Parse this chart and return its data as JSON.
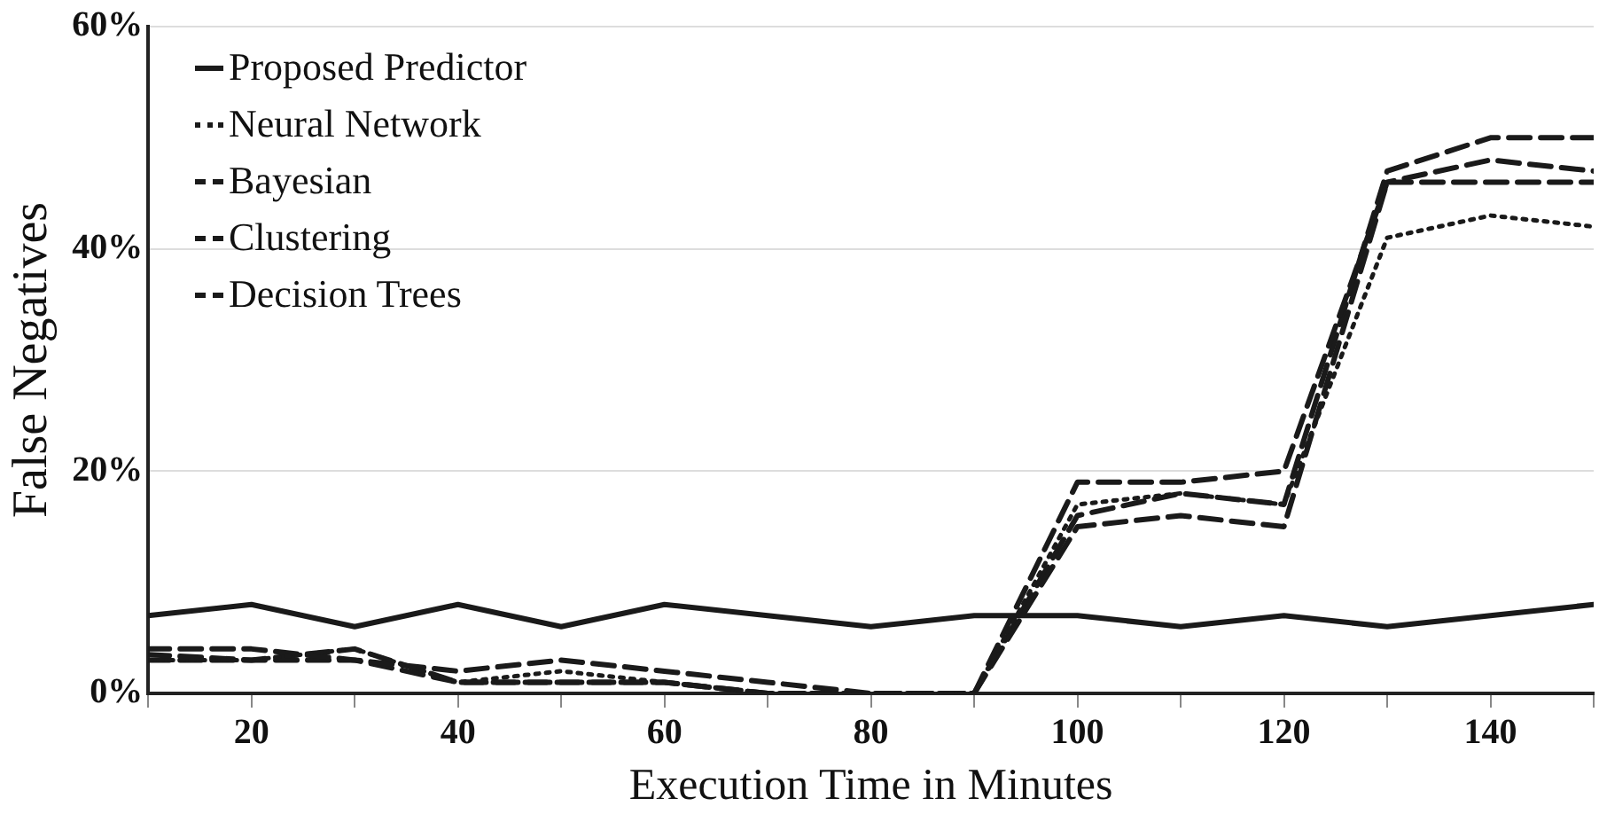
{
  "chart_data": {
    "type": "line",
    "xlabel": "Execution Time in Minutes",
    "ylabel": "False Negatives",
    "x": [
      10,
      20,
      30,
      40,
      50,
      60,
      70,
      80,
      90,
      100,
      110,
      120,
      130,
      140,
      150
    ],
    "series": [
      {
        "name": "Proposed Predictor",
        "color": "#1a1a1a",
        "line_style": "solid",
        "values": [
          7,
          8,
          6,
          8,
          6,
          8,
          7,
          6,
          7,
          7,
          6,
          7,
          6,
          7,
          8
        ]
      },
      {
        "name": "Neural Network",
        "color": "#1a1a1a",
        "line_style": "dotted",
        "values": [
          3,
          3,
          4,
          1,
          2,
          1,
          0,
          0,
          0,
          17,
          18,
          17,
          41,
          43,
          42
        ]
      },
      {
        "name": "Bayesian",
        "color": "#1a1a1a",
        "line_style": "dashed",
        "values": [
          4,
          4,
          3,
          2,
          3,
          2,
          1,
          0,
          0,
          15,
          16,
          15,
          46,
          46,
          46
        ]
      },
      {
        "name": "Clustering",
        "color": "#1a1a1a",
        "line_style": "dashed",
        "values": [
          3.5,
          3,
          3,
          1,
          1,
          1,
          0,
          0,
          0,
          19,
          19,
          20,
          46,
          48,
          47
        ]
      },
      {
        "name": "Decision Trees",
        "color": "#1a1a1a",
        "line_style": "dashed",
        "values": [
          3,
          3,
          4,
          1,
          1,
          1,
          0,
          0,
          0,
          16,
          18,
          17,
          47,
          50,
          50
        ]
      }
    ],
    "xlim": [
      10,
      150
    ],
    "xticks": [
      {
        "value": 10,
        "label": null
      },
      20,
      {
        "value": 30,
        "label": null
      },
      40,
      {
        "value": 50,
        "label": null
      },
      60,
      {
        "value": 70,
        "label": null
      },
      80,
      {
        "value": 90,
        "label": null
      },
      100,
      {
        "value": 110,
        "label": null
      },
      120,
      {
        "value": 130,
        "label": null
      },
      140,
      {
        "value": 150,
        "label": null
      }
    ],
    "ylim": [
      0,
      60
    ],
    "yticks": [
      {
        "value": 0,
        "label": "0%"
      },
      {
        "value": 20,
        "label": "20%"
      },
      {
        "value": 40,
        "label": "40%"
      },
      {
        "value": 60,
        "label": "60%"
      }
    ],
    "grid": "y",
    "legend": "top left",
    "marker": "none"
  }
}
